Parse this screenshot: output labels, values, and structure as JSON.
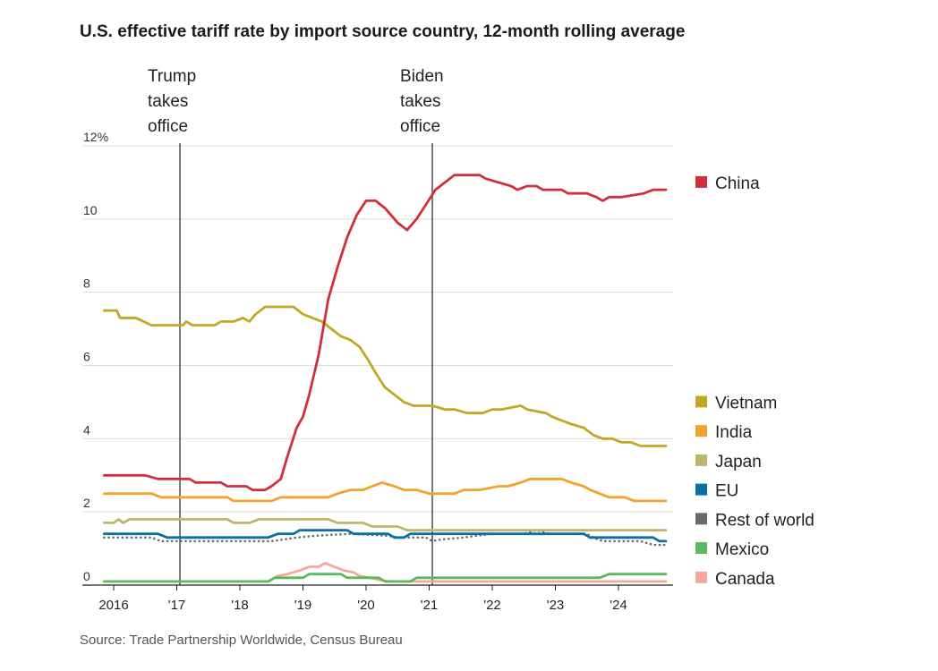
{
  "title": "U.S. effective tariff rate by import source country, 12-month rolling average",
  "source": "Source: Trade Partnership Worldwide, Census Bureau",
  "chart_data": {
    "type": "line",
    "title": "U.S. effective tariff rate by import source country, 12-month rolling average",
    "xlabel": "",
    "ylabel": "",
    "xlim": [
      2015.85,
      2024.75
    ],
    "ylim": [
      0,
      12
    ],
    "grid": true,
    "legend_position": "right",
    "y_ticks": [
      {
        "value": 0,
        "label": "0"
      },
      {
        "value": 2,
        "label": "2"
      },
      {
        "value": 4,
        "label": "4"
      },
      {
        "value": 6,
        "label": "6"
      },
      {
        "value": 8,
        "label": "8"
      },
      {
        "value": 10,
        "label": "10"
      },
      {
        "value": 12,
        "label": "12%"
      }
    ],
    "x_ticks": [
      {
        "value": 2016,
        "label": "2016"
      },
      {
        "value": 2017,
        "label": "'17"
      },
      {
        "value": 2018,
        "label": "'18"
      },
      {
        "value": 2019,
        "label": "'19"
      },
      {
        "value": 2020,
        "label": "'20"
      },
      {
        "value": 2021,
        "label": "'21"
      },
      {
        "value": 2022,
        "label": "'22"
      },
      {
        "value": 2023,
        "label": "'23"
      },
      {
        "value": 2024,
        "label": "'24"
      }
    ],
    "annotations": [
      {
        "x": 2017.05,
        "lines": [
          "Trump",
          "takes",
          "office"
        ]
      },
      {
        "x": 2021.05,
        "lines": [
          "Biden",
          "takes",
          "office"
        ]
      }
    ],
    "series": [
      {
        "name": "China",
        "color": "#d1303b",
        "style": "solid",
        "legend_y": 11.0,
        "x": [
          2015.85,
          2016.5,
          2016.7,
          2017.2,
          2017.3,
          2017.7,
          2017.8,
          2018.1,
          2018.2,
          2018.4,
          2018.5,
          2018.65,
          2018.75,
          2018.9,
          2019.0,
          2019.1,
          2019.25,
          2019.4,
          2019.55,
          2019.7,
          2019.85,
          2020.0,
          2020.15,
          2020.3,
          2020.5,
          2020.65,
          2020.8,
          2020.95,
          2021.1,
          2021.25,
          2021.4,
          2021.6,
          2021.8,
          2021.9,
          2022.3,
          2022.4,
          2022.55,
          2022.7,
          2022.8,
          2022.9,
          2023.1,
          2023.2,
          2023.5,
          2023.65,
          2023.75,
          2023.85,
          2023.95,
          2024.05,
          2024.4,
          2024.55,
          2024.75
        ],
        "values": [
          3.0,
          3.0,
          2.9,
          2.9,
          2.8,
          2.8,
          2.7,
          2.7,
          2.6,
          2.6,
          2.7,
          2.9,
          3.5,
          4.3,
          4.6,
          5.2,
          6.3,
          7.8,
          8.7,
          9.5,
          10.1,
          10.5,
          10.5,
          10.3,
          9.9,
          9.7,
          10.0,
          10.4,
          10.8,
          11.0,
          11.2,
          11.2,
          11.2,
          11.1,
          10.9,
          10.8,
          10.9,
          10.9,
          10.8,
          10.8,
          10.8,
          10.7,
          10.7,
          10.6,
          10.5,
          10.6,
          10.6,
          10.6,
          10.7,
          10.8,
          10.8
        ]
      },
      {
        "name": "Vietnam",
        "color": "#c4a627",
        "style": "solid",
        "legend_y": 5.0,
        "x": [
          2015.85,
          2016.05,
          2016.1,
          2016.35,
          2016.6,
          2016.75,
          2017.1,
          2017.15,
          2017.25,
          2017.6,
          2017.7,
          2017.9,
          2018.05,
          2018.15,
          2018.25,
          2018.4,
          2018.5,
          2018.6,
          2018.85,
          2019.0,
          2019.15,
          2019.3,
          2019.45,
          2019.6,
          2019.75,
          2019.9,
          2020.05,
          2020.15,
          2020.3,
          2020.45,
          2020.6,
          2020.75,
          2020.9,
          2021.05,
          2021.25,
          2021.4,
          2021.6,
          2021.85,
          2022.0,
          2022.15,
          2022.45,
          2022.55,
          2022.85,
          2022.95,
          2023.1,
          2023.25,
          2023.45,
          2023.6,
          2023.75,
          2023.9,
          2024.05,
          2024.2,
          2024.35,
          2024.5,
          2024.75
        ],
        "values": [
          7.5,
          7.5,
          7.3,
          7.3,
          7.1,
          7.1,
          7.1,
          7.2,
          7.1,
          7.1,
          7.2,
          7.2,
          7.3,
          7.2,
          7.4,
          7.6,
          7.6,
          7.6,
          7.6,
          7.4,
          7.3,
          7.2,
          7.0,
          6.8,
          6.7,
          6.5,
          6.1,
          5.8,
          5.4,
          5.2,
          5.0,
          4.9,
          4.9,
          4.9,
          4.8,
          4.8,
          4.7,
          4.7,
          4.8,
          4.8,
          4.9,
          4.8,
          4.7,
          4.6,
          4.5,
          4.4,
          4.3,
          4.1,
          4.0,
          4.0,
          3.9,
          3.9,
          3.8,
          3.8,
          3.8
        ]
      },
      {
        "name": "India",
        "color": "#f4a229",
        "style": "solid",
        "legend_y": 4.2,
        "x": [
          2015.85,
          2016.6,
          2016.75,
          2017.8,
          2017.9,
          2018.5,
          2018.65,
          2019.4,
          2019.55,
          2019.75,
          2019.95,
          2020.1,
          2020.25,
          2020.45,
          2020.6,
          2020.8,
          2021.0,
          2021.4,
          2021.55,
          2021.8,
          2022.1,
          2022.25,
          2022.45,
          2022.6,
          2023.1,
          2023.25,
          2023.45,
          2023.55,
          2023.7,
          2023.85,
          2024.1,
          2024.25,
          2024.75
        ],
        "values": [
          2.5,
          2.5,
          2.4,
          2.4,
          2.3,
          2.3,
          2.4,
          2.4,
          2.5,
          2.6,
          2.6,
          2.7,
          2.8,
          2.7,
          2.6,
          2.6,
          2.5,
          2.5,
          2.6,
          2.6,
          2.7,
          2.7,
          2.8,
          2.9,
          2.9,
          2.8,
          2.7,
          2.6,
          2.5,
          2.4,
          2.4,
          2.3,
          2.3
        ]
      },
      {
        "name": "Japan",
        "color": "#bdb76b",
        "style": "solid",
        "legend_y": 3.4,
        "x": [
          2015.85,
          2016.0,
          2016.08,
          2016.15,
          2016.25,
          2017.8,
          2017.9,
          2018.15,
          2018.3,
          2019.4,
          2019.55,
          2019.95,
          2020.1,
          2020.5,
          2020.65,
          2024.75
        ],
        "values": [
          1.7,
          1.7,
          1.8,
          1.7,
          1.8,
          1.8,
          1.7,
          1.7,
          1.8,
          1.8,
          1.7,
          1.7,
          1.6,
          1.6,
          1.5,
          1.5
        ]
      },
      {
        "name": "EU",
        "color": "#0a6fa3",
        "style": "solid",
        "legend_y": 2.6,
        "x": [
          2015.85,
          2016.7,
          2016.85,
          2018.45,
          2018.6,
          2018.85,
          2018.95,
          2019.7,
          2019.8,
          2020.35,
          2020.45,
          2020.6,
          2020.7,
          2021.05,
          2021.2,
          2023.45,
          2023.55,
          2024.55,
          2024.65,
          2024.75
        ],
        "values": [
          1.4,
          1.4,
          1.3,
          1.3,
          1.4,
          1.4,
          1.5,
          1.5,
          1.4,
          1.4,
          1.3,
          1.3,
          1.4,
          1.4,
          1.4,
          1.4,
          1.3,
          1.3,
          1.2,
          1.2
        ]
      },
      {
        "name": "Rest of world",
        "color": "#6b6b6b",
        "style": "dotted",
        "legend_y": 1.8,
        "x": [
          2015.85,
          2016.6,
          2016.75,
          2018.5,
          2018.7,
          2018.9,
          2019.2,
          2019.75,
          2020.35,
          2020.5,
          2020.95,
          2021.05,
          2021.2,
          2021.55,
          2021.75,
          2022.0,
          2022.5,
          2022.7,
          2022.9,
          2023.5,
          2023.6,
          2023.75,
          2024.35,
          2024.55,
          2024.75
        ],
        "values": [
          1.3,
          1.3,
          1.2,
          1.2,
          1.25,
          1.3,
          1.35,
          1.4,
          1.35,
          1.3,
          1.3,
          1.2,
          1.25,
          1.3,
          1.35,
          1.4,
          1.4,
          1.5,
          1.4,
          1.4,
          1.3,
          1.2,
          1.2,
          1.1,
          1.1
        ]
      },
      {
        "name": "Mexico",
        "color": "#5cb85c",
        "style": "solid",
        "legend_y": 1.0,
        "x": [
          2015.85,
          2018.45,
          2018.55,
          2019.0,
          2019.1,
          2019.6,
          2019.7,
          2020.2,
          2020.3,
          2020.7,
          2020.8,
          2023.7,
          2023.85,
          2024.75
        ],
        "values": [
          0.1,
          0.1,
          0.2,
          0.2,
          0.3,
          0.3,
          0.2,
          0.2,
          0.1,
          0.1,
          0.2,
          0.2,
          0.3,
          0.3
        ]
      },
      {
        "name": "Canada",
        "color": "#f4a79b",
        "style": "solid",
        "legend_y": 0.2,
        "x": [
          2015.85,
          2018.45,
          2018.6,
          2018.75,
          2018.95,
          2019.1,
          2019.25,
          2019.35,
          2019.5,
          2019.65,
          2019.8,
          2019.9,
          2020.05,
          2020.2,
          2020.35,
          2024.75
        ],
        "values": [
          0.1,
          0.1,
          0.25,
          0.3,
          0.4,
          0.5,
          0.5,
          0.6,
          0.5,
          0.4,
          0.35,
          0.25,
          0.2,
          0.15,
          0.1,
          0.1
        ]
      }
    ]
  }
}
